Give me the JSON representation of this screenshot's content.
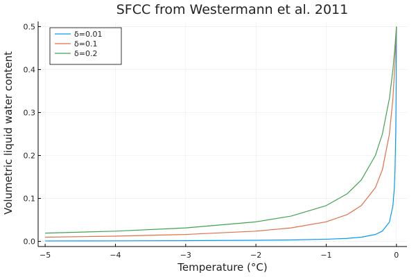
{
  "chart_data": {
    "type": "line",
    "title": "SFCC from Westermann et al. 2011",
    "xlabel": "Temperature (°C)",
    "ylabel": "Volumetric liquid water content",
    "xlim": [
      -5.1,
      0.15
    ],
    "ylim": [
      -0.012,
      0.512
    ],
    "xticks": [
      -5,
      -4,
      -3,
      -2,
      -1,
      0
    ],
    "xtick_labels": [
      "−5",
      "−4",
      "−3",
      "−2",
      "−1",
      "0"
    ],
    "yticks": [
      0.0,
      0.1,
      0.2,
      0.3,
      0.4,
      0.5
    ],
    "ytick_labels": [
      "0.0",
      "0.1",
      "0.2",
      "0.3",
      "0.4",
      "0.5"
    ],
    "grid": true,
    "legend_position": "top-left",
    "series": [
      {
        "name": "δ=0.01",
        "color": "#009af9",
        "x": [
          -5,
          -4,
          -3,
          -2,
          -1.5,
          -1,
          -0.7,
          -0.5,
          -0.3,
          -0.2,
          -0.1,
          -0.05,
          -0.03,
          -0.02,
          -0.01,
          -0.005,
          -0.002,
          0
        ],
        "y": [
          0.001,
          0.0012,
          0.0017,
          0.0025,
          0.0033,
          0.005,
          0.007,
          0.0098,
          0.016,
          0.024,
          0.045,
          0.083,
          0.125,
          0.167,
          0.25,
          0.333,
          0.417,
          0.5
        ]
      },
      {
        "name": "δ=0.1",
        "color": "#e26f46",
        "x": [
          -5,
          -4,
          -3,
          -2,
          -1.5,
          -1,
          -0.7,
          -0.5,
          -0.3,
          -0.2,
          -0.1,
          -0.05,
          -0.02,
          0
        ],
        "y": [
          0.0098,
          0.0122,
          0.0161,
          0.0238,
          0.0313,
          0.0455,
          0.0625,
          0.0833,
          0.125,
          0.167,
          0.25,
          0.333,
          0.417,
          0.5
        ]
      },
      {
        "name": "δ=0.2",
        "color": "#3da44d",
        "x": [
          -5,
          -4,
          -3,
          -2,
          -1.5,
          -1,
          -0.7,
          -0.5,
          -0.3,
          -0.2,
          -0.1,
          -0.05,
          -0.02,
          0
        ],
        "y": [
          0.0192,
          0.0238,
          0.0313,
          0.0455,
          0.0588,
          0.0833,
          0.111,
          0.143,
          0.2,
          0.25,
          0.333,
          0.4,
          0.455,
          0.5
        ]
      }
    ]
  }
}
